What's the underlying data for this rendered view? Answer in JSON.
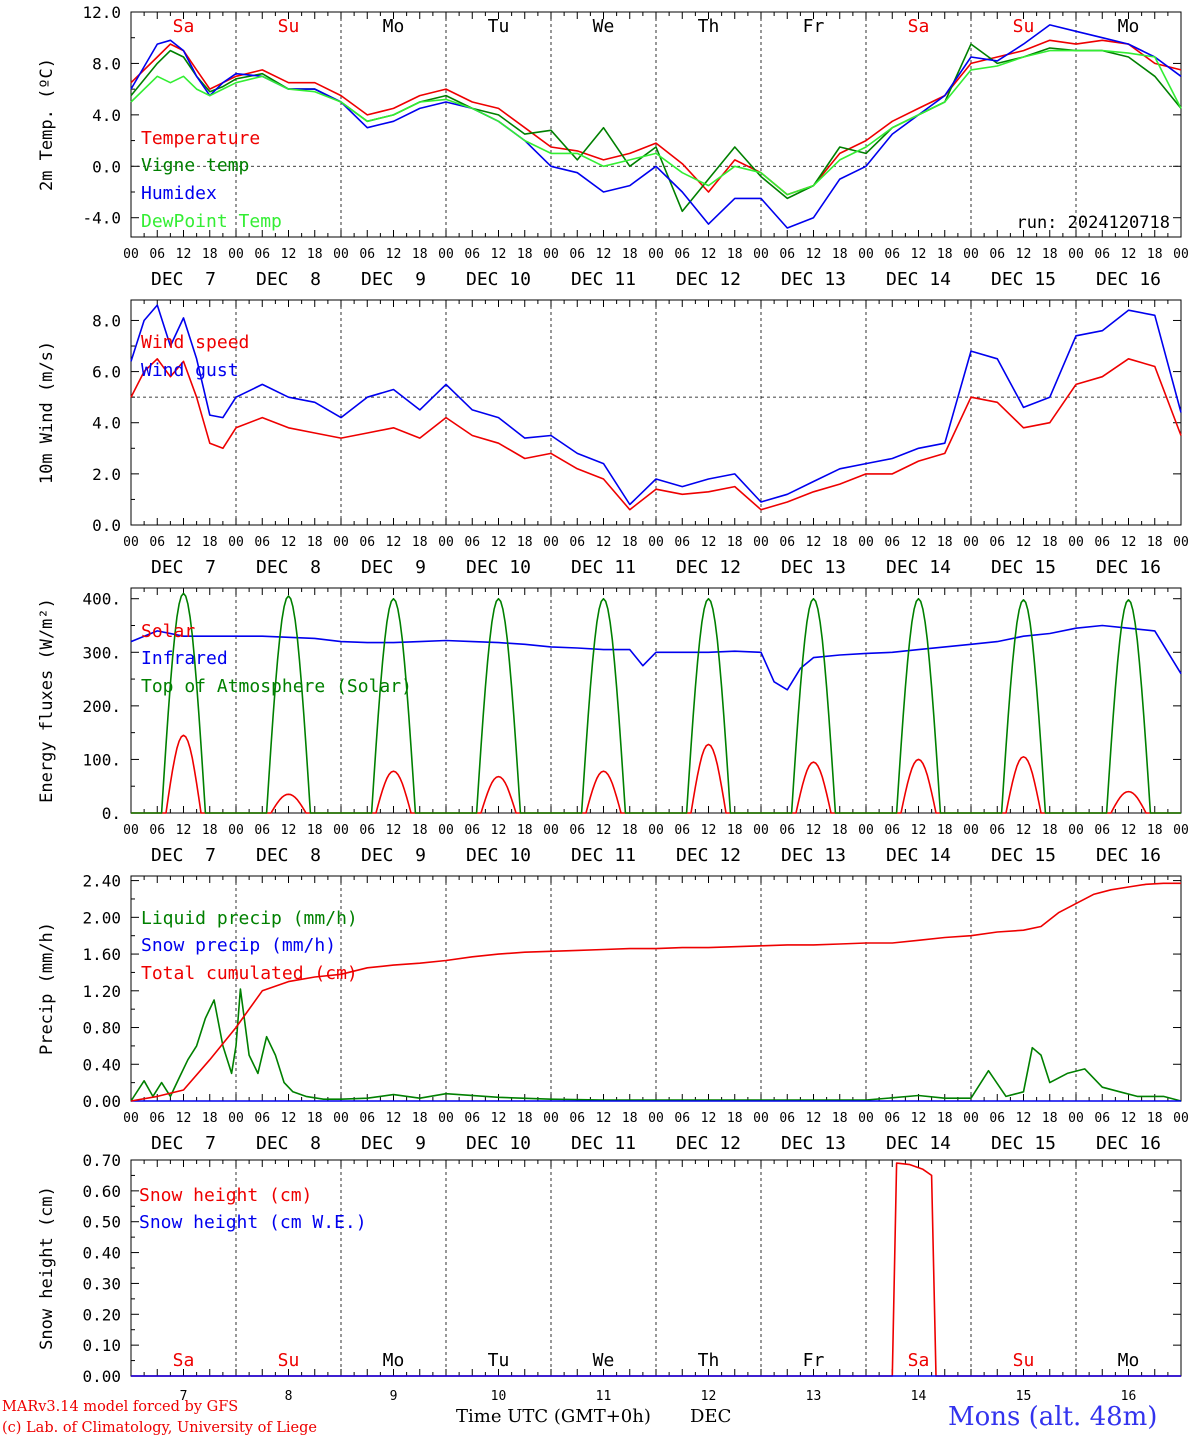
{
  "colors": {
    "red": "#ee0000",
    "darkgreen": "#008000",
    "blue": "#0000ee",
    "lightgreen": "#33ee33",
    "black": "#000000",
    "station": "#3333ee"
  },
  "days": [
    "7",
    "8",
    "9",
    "10",
    "11",
    "12",
    "13",
    "14",
    "15",
    "16"
  ],
  "day_labels": [
    "DEC  7",
    "DEC  8",
    "DEC  9",
    "DEC 10",
    "DEC 11",
    "DEC 12",
    "DEC 13",
    "DEC 14",
    "DEC 15",
    "DEC 16"
  ],
  "weekdays": [
    "Sa",
    "Su",
    "Mo",
    "Tu",
    "We",
    "Th",
    "Fr",
    "Sa",
    "Su",
    "Mo"
  ],
  "weekday_colors": [
    "red",
    "red",
    "black",
    "black",
    "black",
    "black",
    "black",
    "red",
    "red",
    "black"
  ],
  "hour_labels": [
    "00",
    "06",
    "12",
    "18"
  ],
  "final_hour_label": "00",
  "footer": {
    "model": "MARv3.14 model forced by GFS",
    "copyright": "(c) Lab. of Climatology, University of Liege",
    "xlabel": "Time UTC (GMT+0h)",
    "month": "DEC",
    "station": "Mons (alt. 48m)"
  },
  "chart_data": [
    {
      "type": "line",
      "ylabel": "2m Temp. (ºC)",
      "ylim": [
        -5.5,
        12.0
      ],
      "yticks": [
        12.0,
        8.0,
        4.0,
        0.0,
        -4.0
      ],
      "ytick_labels": [
        "12.0",
        "8.0",
        "4.0",
        "0.0",
        "-4.0"
      ],
      "ref_line": 0.0,
      "annotation": "run: 2024120718",
      "x_unit": "hours since DEC 7 00 UTC",
      "series": [
        {
          "name": "Temperature",
          "color": "red",
          "x": [
            0,
            6,
            9,
            12,
            15,
            18,
            21,
            24,
            30,
            36,
            42,
            48,
            54,
            60,
            66,
            72,
            78,
            84,
            90,
            96,
            102,
            108,
            114,
            120,
            126,
            132,
            138,
            144,
            150,
            156,
            162,
            168,
            174,
            180,
            186,
            192,
            198,
            204,
            210,
            216,
            222,
            228,
            234,
            240
          ],
          "y": [
            6.5,
            8.5,
            9.5,
            9.0,
            7.5,
            6.0,
            6.5,
            7.0,
            7.5,
            6.5,
            6.5,
            5.5,
            4.0,
            4.5,
            5.5,
            6.0,
            5.0,
            4.5,
            3.0,
            1.5,
            1.2,
            0.5,
            1.0,
            1.8,
            0.2,
            -2.0,
            0.5,
            -0.5,
            -2.2,
            -1.5,
            1.0,
            2.0,
            3.5,
            4.5,
            5.5,
            8.0,
            8.5,
            9.0,
            9.8,
            9.5,
            9.8,
            9.5,
            8.0,
            7.5
          ]
        },
        {
          "name": "Vigne temp",
          "color": "darkgreen",
          "x": [
            0,
            6,
            9,
            12,
            15,
            18,
            21,
            24,
            30,
            36,
            42,
            48,
            54,
            60,
            66,
            72,
            78,
            84,
            90,
            96,
            102,
            108,
            114,
            120,
            126,
            132,
            138,
            144,
            150,
            156,
            162,
            168,
            174,
            180,
            186,
            192,
            198,
            204,
            210,
            216,
            222,
            228,
            234,
            240
          ],
          "y": [
            5.5,
            8.0,
            9.0,
            8.5,
            7.0,
            5.8,
            6.2,
            6.8,
            7.2,
            6.0,
            6.0,
            5.0,
            3.5,
            4.0,
            5.0,
            5.5,
            4.5,
            4.0,
            2.5,
            2.8,
            0.5,
            3.0,
            0.0,
            1.5,
            -3.5,
            -1.0,
            1.5,
            -0.8,
            -2.5,
            -1.5,
            1.5,
            1.0,
            3.0,
            4.0,
            5.0,
            9.5,
            8.0,
            8.5,
            9.2,
            9.0,
            9.0,
            8.5,
            7.0,
            4.5
          ]
        },
        {
          "name": "Humidex",
          "color": "blue",
          "x": [
            0,
            6,
            9,
            12,
            15,
            18,
            21,
            24,
            30,
            36,
            42,
            48,
            54,
            60,
            66,
            72,
            78,
            84,
            90,
            96,
            102,
            108,
            114,
            120,
            126,
            132,
            138,
            144,
            150,
            156,
            162,
            168,
            174,
            180,
            186,
            192,
            198,
            204,
            210,
            216,
            222,
            228,
            234,
            240
          ],
          "y": [
            6.0,
            9.5,
            9.8,
            9.0,
            7.0,
            5.5,
            6.5,
            7.2,
            7.0,
            6.0,
            6.0,
            5.0,
            3.0,
            3.5,
            4.5,
            5.0,
            4.5,
            3.5,
            2.0,
            0.0,
            -0.5,
            -2.0,
            -1.5,
            0.0,
            -2.0,
            -4.5,
            -2.5,
            -2.5,
            -4.8,
            -4.0,
            -1.0,
            0.0,
            2.5,
            4.0,
            5.5,
            8.5,
            8.2,
            9.5,
            11.0,
            10.5,
            10.0,
            9.5,
            8.5,
            7.0
          ]
        },
        {
          "name": "DewPoint Temp",
          "color": "lightgreen",
          "x": [
            0,
            6,
            9,
            12,
            15,
            18,
            21,
            24,
            30,
            36,
            42,
            48,
            54,
            60,
            66,
            72,
            78,
            84,
            90,
            96,
            102,
            108,
            114,
            120,
            126,
            132,
            138,
            144,
            150,
            156,
            162,
            168,
            174,
            180,
            186,
            192,
            198,
            204,
            210,
            216,
            222,
            228,
            234,
            240
          ],
          "y": [
            5.0,
            7.0,
            6.5,
            7.0,
            6.0,
            5.5,
            6.0,
            6.5,
            7.0,
            6.0,
            5.8,
            5.0,
            3.5,
            4.0,
            5.0,
            5.2,
            4.5,
            3.5,
            2.0,
            1.0,
            1.0,
            0.0,
            0.5,
            1.0,
            -0.5,
            -1.5,
            0.0,
            -0.5,
            -2.2,
            -1.5,
            0.5,
            1.5,
            3.0,
            4.0,
            5.0,
            7.5,
            7.8,
            8.5,
            9.0,
            9.0,
            9.0,
            8.8,
            8.5,
            4.5
          ]
        }
      ]
    },
    {
      "type": "line",
      "ylabel": "10m Wind (m/s)",
      "ylim": [
        0.0,
        8.8
      ],
      "yticks": [
        8.0,
        6.0,
        4.0,
        2.0,
        0.0
      ],
      "ytick_labels": [
        "8.0",
        "6.0",
        "4.0",
        "2.0",
        "0.0"
      ],
      "ref_line": 5.0,
      "x_unit": "hours since DEC 7 00 UTC",
      "series": [
        {
          "name": "Wind speed",
          "color": "red",
          "x": [
            0,
            3,
            6,
            9,
            12,
            15,
            18,
            21,
            24,
            30,
            36,
            42,
            48,
            54,
            60,
            66,
            72,
            78,
            84,
            90,
            96,
            102,
            108,
            114,
            120,
            126,
            132,
            138,
            144,
            150,
            156,
            162,
            168,
            174,
            180,
            186,
            192,
            198,
            204,
            210,
            216,
            222,
            228,
            234,
            240
          ],
          "y": [
            5.0,
            6.0,
            6.5,
            5.8,
            6.4,
            5.0,
            3.2,
            3.0,
            3.8,
            4.2,
            3.8,
            3.6,
            3.4,
            3.6,
            3.8,
            3.4,
            4.2,
            3.5,
            3.2,
            2.6,
            2.8,
            2.2,
            1.8,
            0.6,
            1.4,
            1.2,
            1.3,
            1.5,
            0.6,
            0.9,
            1.3,
            1.6,
            2.0,
            2.0,
            2.5,
            2.8,
            5.0,
            4.8,
            3.8,
            4.0,
            5.5,
            5.8,
            6.5,
            6.2,
            3.5
          ]
        },
        {
          "name": "Wind gust",
          "color": "blue",
          "x": [
            0,
            3,
            6,
            9,
            12,
            15,
            18,
            21,
            24,
            30,
            36,
            42,
            48,
            54,
            60,
            66,
            72,
            78,
            84,
            90,
            96,
            102,
            108,
            114,
            120,
            126,
            132,
            138,
            144,
            150,
            156,
            162,
            168,
            174,
            180,
            186,
            192,
            198,
            204,
            210,
            216,
            222,
            228,
            234,
            240
          ],
          "y": [
            6.4,
            8.0,
            8.6,
            7.0,
            8.1,
            6.5,
            4.3,
            4.2,
            5.0,
            5.5,
            5.0,
            4.8,
            4.2,
            5.0,
            5.3,
            4.5,
            5.5,
            4.5,
            4.2,
            3.4,
            3.5,
            2.8,
            2.4,
            0.8,
            1.8,
            1.5,
            1.8,
            2.0,
            0.9,
            1.2,
            1.7,
            2.2,
            2.4,
            2.6,
            3.0,
            3.2,
            6.8,
            6.5,
            4.6,
            5.0,
            7.4,
            7.6,
            8.4,
            8.2,
            4.4
          ]
        }
      ]
    },
    {
      "type": "line",
      "ylabel": "Energy fluxes (W/m²)",
      "ylim": [
        0,
        420
      ],
      "yticks": [
        400,
        300,
        200,
        100,
        0
      ],
      "ytick_labels": [
        "400.",
        "300.",
        "200.",
        "100.",
        "0."
      ],
      "x_unit": "hours since DEC 7 00 UTC",
      "series": [
        {
          "name": "Solar",
          "color": "red",
          "daily_peaks": [
            145,
            35,
            78,
            68,
            78,
            128,
            95,
            100,
            105,
            40
          ],
          "peak_hour": 12
        },
        {
          "name": "Infrared",
          "color": "blue",
          "x": [
            0,
            6,
            12,
            18,
            24,
            30,
            36,
            42,
            48,
            54,
            60,
            66,
            72,
            78,
            84,
            90,
            96,
            102,
            108,
            114,
            117,
            120,
            126,
            132,
            138,
            144,
            147,
            150,
            153,
            156,
            162,
            168,
            174,
            180,
            186,
            192,
            198,
            204,
            210,
            216,
            222,
            228,
            234,
            240
          ],
          "y": [
            320,
            340,
            330,
            330,
            330,
            330,
            328,
            326,
            320,
            318,
            318,
            320,
            322,
            320,
            318,
            315,
            310,
            308,
            305,
            305,
            275,
            300,
            300,
            300,
            302,
            300,
            245,
            230,
            270,
            290,
            295,
            298,
            300,
            305,
            310,
            315,
            320,
            330,
            335,
            345,
            350,
            345,
            340,
            260
          ]
        },
        {
          "name": "Top of Atmosphere (Solar)",
          "color": "darkgreen",
          "daily_peaks": [
            410,
            405,
            400,
            400,
            400,
            400,
            400,
            400,
            398,
            398
          ],
          "peak_hour": 12
        }
      ]
    },
    {
      "type": "line",
      "ylabel": "Precip (mm/h)",
      "ylim": [
        0.0,
        2.45
      ],
      "yticks": [
        2.4,
        2.0,
        1.6,
        1.2,
        0.8,
        0.4,
        0.0
      ],
      "ytick_labels": [
        "2.40",
        "2.00",
        "1.60",
        "1.20",
        "0.80",
        "0.40",
        "0.00"
      ],
      "x_unit": "hours since DEC 7 00 UTC",
      "series": [
        {
          "name": "Liquid precip (mm/h)",
          "color": "darkgreen",
          "x": [
            0,
            3,
            5,
            7,
            9,
            11,
            13,
            15,
            17,
            19,
            21,
            23,
            24,
            25,
            27,
            29,
            31,
            33,
            35,
            37,
            40,
            44,
            48,
            54,
            60,
            66,
            72,
            84,
            96,
            108,
            120,
            132,
            144,
            156,
            168,
            180,
            186,
            192,
            196,
            200,
            204,
            206,
            208,
            210,
            214,
            218,
            222,
            226,
            230,
            236,
            240
          ],
          "y": [
            0.0,
            0.22,
            0.05,
            0.2,
            0.05,
            0.25,
            0.45,
            0.6,
            0.9,
            1.1,
            0.6,
            0.3,
            0.6,
            1.22,
            0.5,
            0.3,
            0.7,
            0.5,
            0.2,
            0.1,
            0.05,
            0.02,
            0.02,
            0.03,
            0.07,
            0.03,
            0.08,
            0.04,
            0.02,
            0.01,
            0.01,
            0.01,
            0.01,
            0.01,
            0.01,
            0.06,
            0.03,
            0.03,
            0.33,
            0.05,
            0.1,
            0.58,
            0.5,
            0.2,
            0.3,
            0.35,
            0.15,
            0.1,
            0.05,
            0.05,
            0.0
          ]
        },
        {
          "name": "Snow precip (mm/h)",
          "color": "blue",
          "x": [
            0,
            240
          ],
          "y": [
            0.0,
            0.0
          ]
        },
        {
          "name": "Total cumulated (cm)",
          "color": "red",
          "x": [
            0,
            6,
            12,
            18,
            24,
            30,
            36,
            42,
            48,
            54,
            60,
            66,
            72,
            78,
            84,
            90,
            96,
            102,
            108,
            114,
            120,
            126,
            132,
            138,
            144,
            150,
            156,
            162,
            168,
            174,
            180,
            186,
            192,
            198,
            204,
            208,
            212,
            216,
            220,
            224,
            228,
            232,
            236,
            240
          ],
          "y": [
            0.0,
            0.05,
            0.12,
            0.45,
            0.8,
            1.2,
            1.3,
            1.35,
            1.38,
            1.45,
            1.48,
            1.5,
            1.53,
            1.57,
            1.6,
            1.62,
            1.63,
            1.64,
            1.65,
            1.66,
            1.66,
            1.67,
            1.67,
            1.68,
            1.69,
            1.7,
            1.7,
            1.71,
            1.72,
            1.72,
            1.75,
            1.78,
            1.8,
            1.84,
            1.86,
            1.9,
            2.05,
            2.15,
            2.25,
            2.3,
            2.33,
            2.36,
            2.37,
            2.37
          ]
        }
      ]
    },
    {
      "type": "line",
      "ylabel": "Snow height (cm)",
      "ylim": [
        0.0,
        0.7
      ],
      "yticks": [
        0.7,
        0.6,
        0.5,
        0.4,
        0.3,
        0.2,
        0.1,
        0.0
      ],
      "ytick_labels": [
        "0.70",
        "0.60",
        "0.50",
        "0.40",
        "0.30",
        "0.20",
        "0.10",
        "0.00"
      ],
      "x_unit": "hours since DEC 7 00 UTC",
      "series": [
        {
          "name": "Snow height (cm)",
          "color": "red",
          "x": [
            0,
            174,
            175,
            178,
            181,
            183,
            184,
            240
          ],
          "y": [
            0,
            0,
            0.69,
            0.685,
            0.67,
            0.65,
            0,
            0
          ]
        },
        {
          "name": "Snow height (cm W.E.)",
          "color": "blue",
          "x": [
            0,
            240
          ],
          "y": [
            0,
            0
          ]
        }
      ]
    }
  ]
}
